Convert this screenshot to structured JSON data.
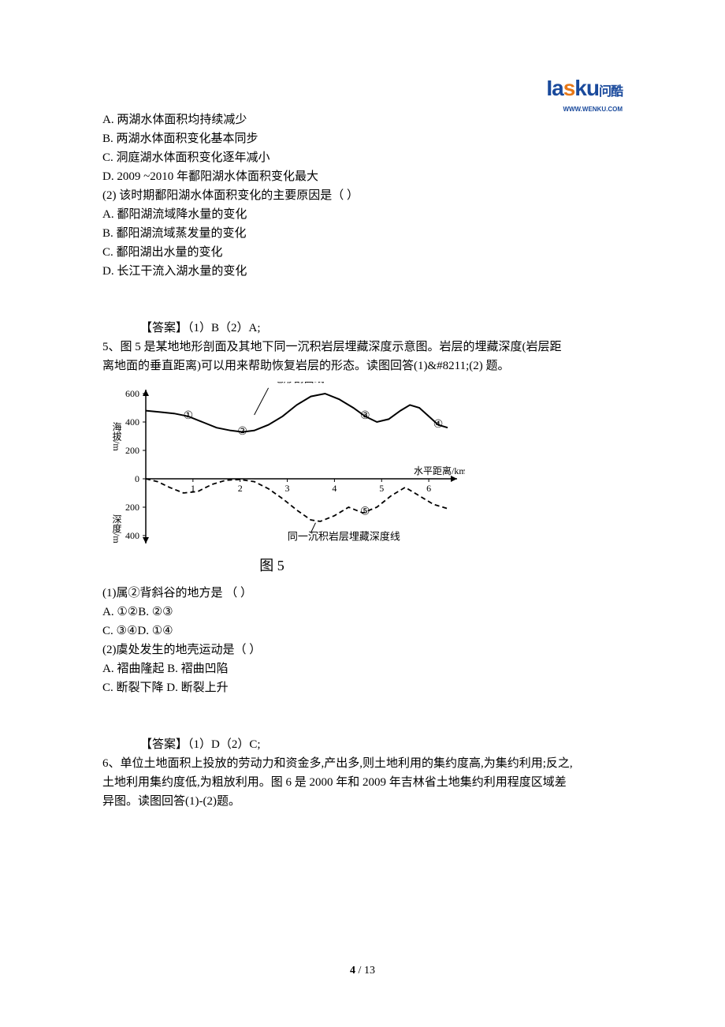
{
  "logo": {
    "part1": "Ia",
    "part2": "s",
    "part3": "ku",
    "cn": "问酷",
    "sub": "WWW.WENKU.COM"
  },
  "q4_continued": {
    "optA": "A. 两湖水体面积均持续减少",
    "optB": "B. 两湖水体面积变化基本同步",
    "optC": "C. 洞庭湖水体面积变化逐年减小",
    "optD": "D. 2009 ~2010  年鄱阳湖水体面积变化最大",
    "sub2_stem": "(2) 该时期鄱阳湖水体面积变化的主要原因是（       ）",
    "sub2_optA": "A. 鄱阳湖流域降水量的变化",
    "sub2_optB": "B. 鄱阳湖流域蒸发量的变化",
    "sub2_optC": "C. 鄱阳湖出水量的变化",
    "sub2_optD": "D. 长江干流入湖水量的变化",
    "answer": "【答案】（1）B（2）A;"
  },
  "q5": {
    "stem_l1": "5、图 5 是某地地形剖面及其地下同一沉积岩层埋藏深度示意图。岩层的埋藏深度(岩层距",
    "stem_l2": "离地面的垂直距离)可以用来帮助恢复岩层的形态。读图回答(1)&#8211;(2) 题。",
    "figure": {
      "caption": "图 5",
      "y_axis_upper_label": "海拔/m",
      "y_axis_lower_label": "深度/m",
      "x_axis_label": "水平距离/km",
      "line1_label": "地形剖面线",
      "line2_label": "同一沉积岩层埋藏深度线",
      "y_ticks_upper": [
        "600",
        "400",
        "200",
        "0"
      ],
      "y_ticks_lower": [
        "200",
        "400"
      ],
      "x_ticks": [
        "1",
        "2",
        "3",
        "4",
        "5",
        "6"
      ],
      "markers": [
        "①",
        "②",
        "③",
        "④",
        "⑤"
      ],
      "terrain_points": [
        [
          0,
          480
        ],
        [
          30,
          470
        ],
        [
          60,
          460
        ],
        [
          90,
          440
        ],
        [
          120,
          400
        ],
        [
          150,
          360
        ],
        [
          180,
          340
        ],
        [
          205,
          330
        ],
        [
          230,
          340
        ],
        [
          260,
          380
        ],
        [
          290,
          440
        ],
        [
          320,
          520
        ],
        [
          350,
          580
        ],
        [
          380,
          600
        ],
        [
          410,
          560
        ],
        [
          440,
          500
        ],
        [
          465,
          440
        ],
        [
          490,
          400
        ],
        [
          515,
          420
        ],
        [
          540,
          480
        ],
        [
          560,
          520
        ],
        [
          580,
          500
        ],
        [
          600,
          440
        ],
        [
          620,
          380
        ],
        [
          640,
          360
        ]
      ],
      "depth_points": [
        [
          0,
          0
        ],
        [
          25,
          -20
        ],
        [
          50,
          -60
        ],
        [
          80,
          -100
        ],
        [
          110,
          -90
        ],
        [
          140,
          -40
        ],
        [
          170,
          -10
        ],
        [
          200,
          -5
        ],
        [
          230,
          -20
        ],
        [
          260,
          -70
        ],
        [
          290,
          -140
        ],
        [
          320,
          -220
        ],
        [
          350,
          -290
        ],
        [
          370,
          -300
        ],
        [
          400,
          -260
        ],
        [
          430,
          -200
        ],
        [
          460,
          -240
        ],
        [
          490,
          -200
        ],
        [
          520,
          -120
        ],
        [
          550,
          -60
        ],
        [
          580,
          -120
        ],
        [
          610,
          -180
        ],
        [
          640,
          -210
        ]
      ],
      "colors": {
        "axis": "#000000",
        "terrain_line": "#000000",
        "depth_line": "#000000",
        "text": "#000000"
      }
    },
    "sub1_stem": "(1)属②背斜谷的地方是      （       ）",
    "sub1_optA": "A. ①②B. ②③",
    "sub1_optC": "C. ③④D. ①④",
    "sub2_stem": "(2)虞处发生的地壳运动是（       ）",
    "sub2_optA": "A. 褶曲隆起 B. 褶曲凹陷",
    "sub2_optC": "C. 断裂下降 D. 断裂上升",
    "answer": "【答案】（1）D（2）C;"
  },
  "q6": {
    "stem_l1": "6、单位土地面积上投放的劳动力和资金多,产出多,则土地利用的集约度高,为集约利用;反之,",
    "stem_l2": "土地利用集约度低,为粗放利用。图 6 是 2000 年和 2009 年吉林省土地集约利用程度区域差",
    "stem_l3": "异图。读图回答(1)-(2)题。"
  },
  "page": {
    "current": "4",
    "sep": " / ",
    "total": "13"
  }
}
